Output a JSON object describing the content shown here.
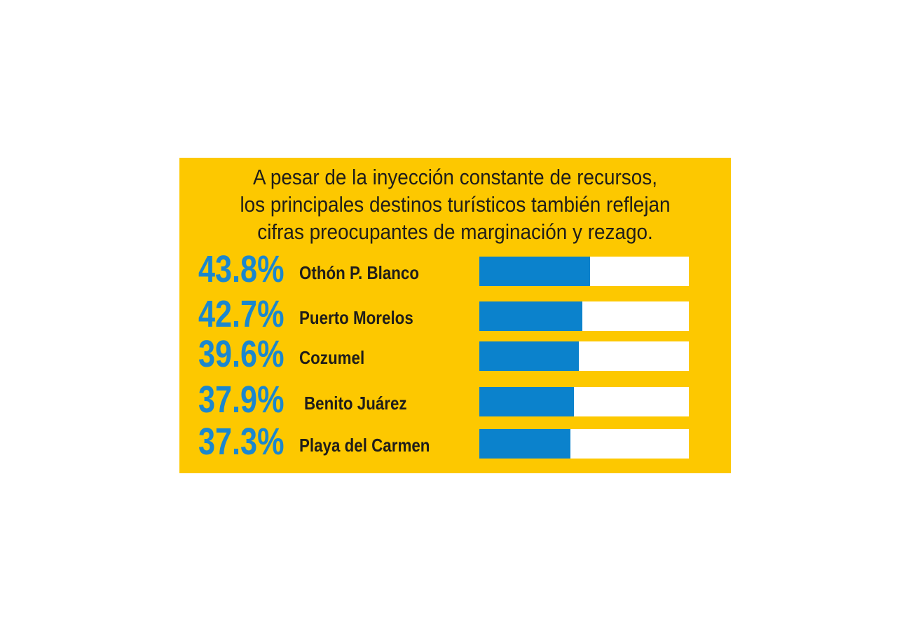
{
  "colors": {
    "panel_background": "#FDC800",
    "accent_blue": "#0B82CC",
    "percent_text": "#1B87CE",
    "bar_track": "#ffffff",
    "text_dark": "#1f1d1a"
  },
  "chart_data": {
    "type": "bar",
    "orientation": "horizontal",
    "title_lines": [
      "A pesar de la inyección constante de recursos,",
      "los principales destinos turísticos también reflejan",
      "cifras preocupantes de marginación y rezago."
    ],
    "categories": [
      "Othón P. Blanco",
      "Puerto Morelos",
      "Cozumel",
      "Benito Juárez",
      "Playa del Carmen"
    ],
    "value_labels": [
      "43.8%",
      "42.7%",
      "39.6%",
      "37.9%",
      "37.3%"
    ],
    "values": [
      43.8,
      42.7,
      39.6,
      37.9,
      37.3
    ],
    "bar_fill_fraction": [
      0.53,
      0.49,
      0.475,
      0.45,
      0.435
    ],
    "legend": "none",
    "grid": false
  }
}
